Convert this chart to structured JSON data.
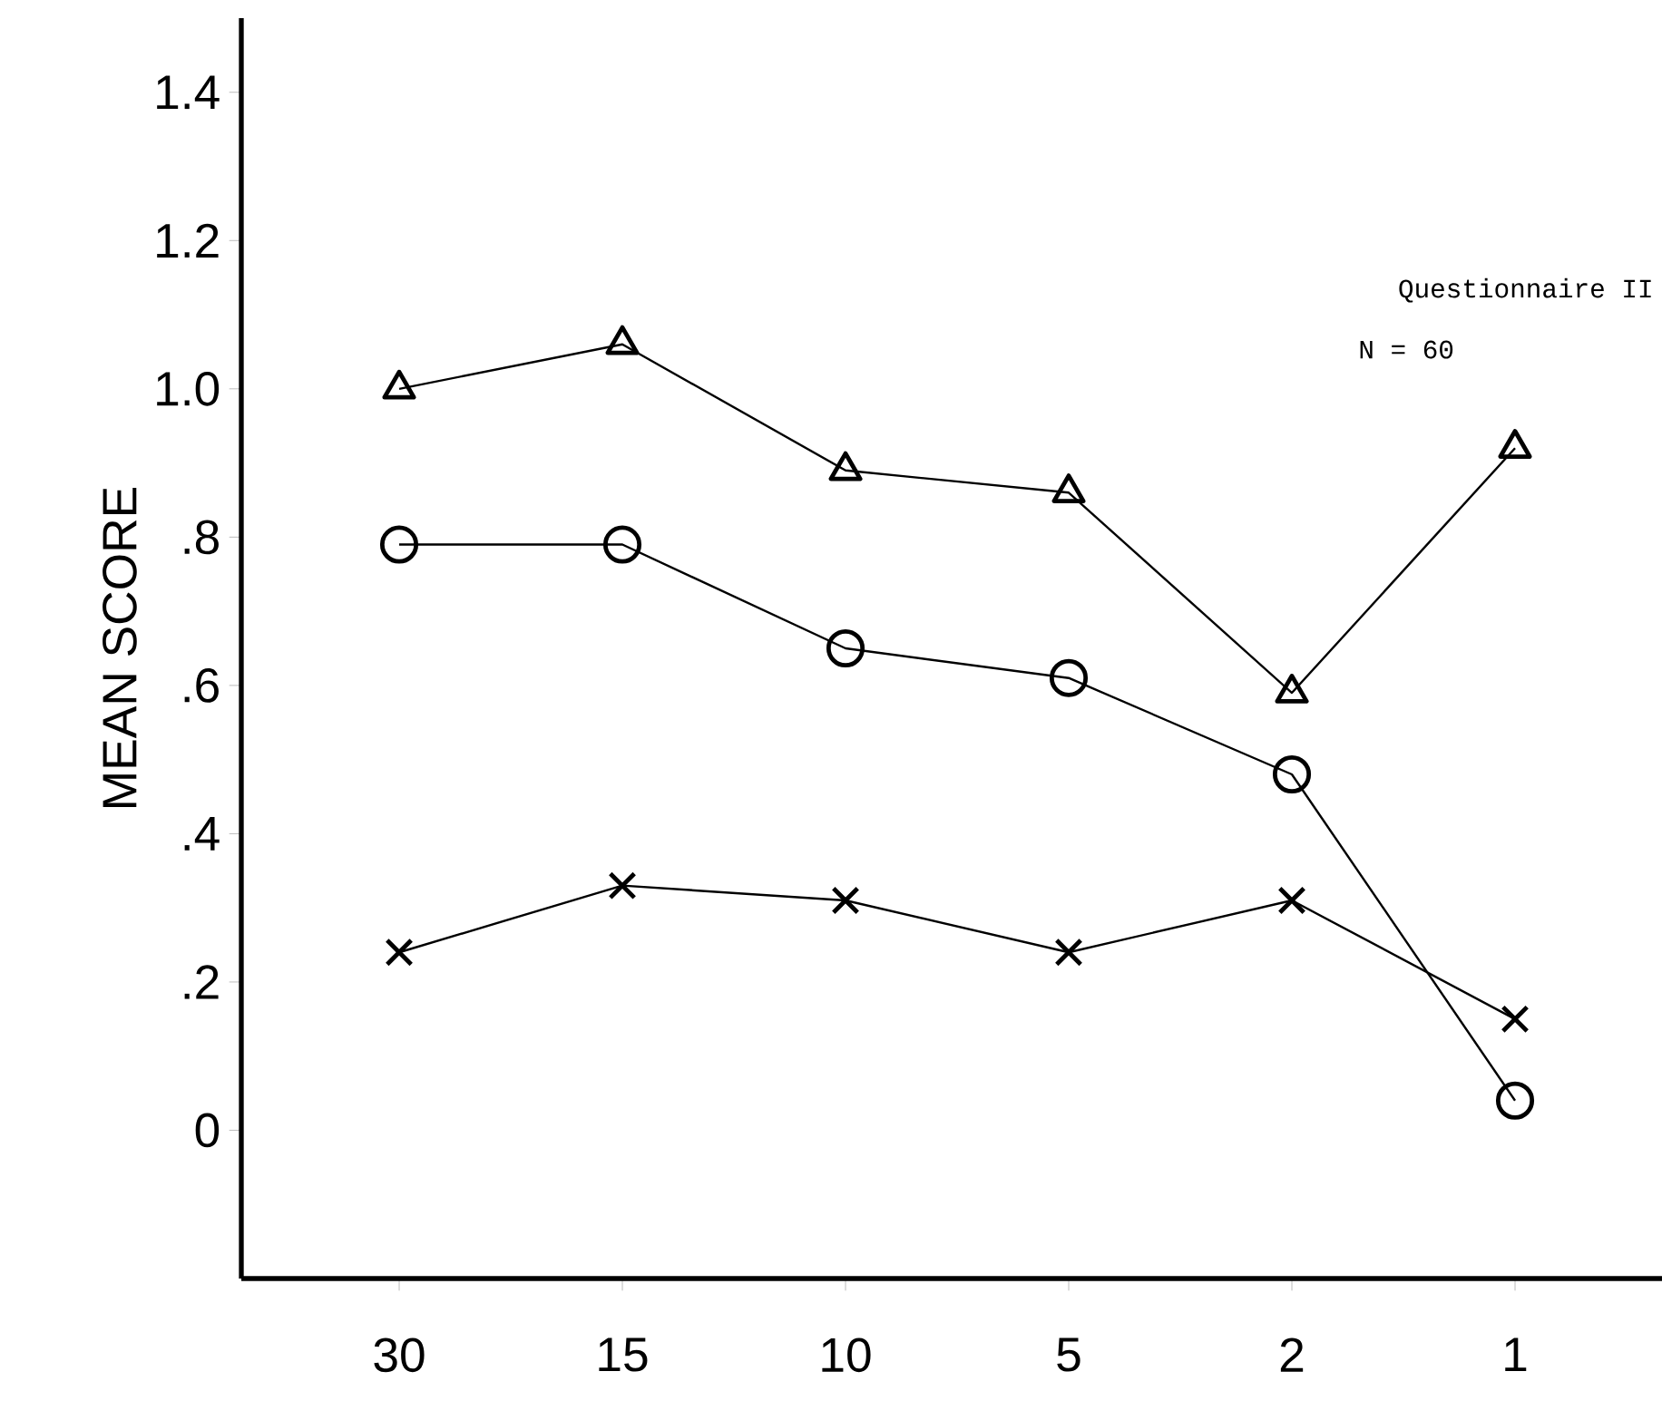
{
  "chart_data": {
    "type": "line",
    "ylabel": "MEAN SCORE",
    "categories": [
      "30",
      "15",
      "10",
      "5",
      "2",
      "1"
    ],
    "series": [
      {
        "color": "#000000",
        "marker": "triangle",
        "values": [
          1.0,
          1.06,
          0.89,
          0.86,
          0.59,
          0.92
        ]
      },
      {
        "color": "#000000",
        "marker": "circle",
        "values": [
          0.79,
          0.79,
          0.65,
          0.61,
          0.48,
          0.04
        ]
      },
      {
        "color": "#000000",
        "marker": "cross",
        "values": [
          0.24,
          0.33,
          0.31,
          0.24,
          0.31,
          0.15
        ]
      }
    ],
    "ylim": [
      -0.2,
      1.5
    ],
    "yticks": [
      0,
      {
        "value": 0.2,
        "label": ".2"
      },
      {
        "value": 0.4,
        "label": ".4"
      },
      {
        "value": 0.6,
        "label": ".6"
      },
      {
        "value": 0.8,
        "label": ".8"
      },
      {
        "value": 1.0,
        "label": "1.0"
      },
      1.2,
      1.4
    ],
    "annotations": [
      "Questionnaire II",
      "N = 60"
    ],
    "line_style": "solid"
  }
}
